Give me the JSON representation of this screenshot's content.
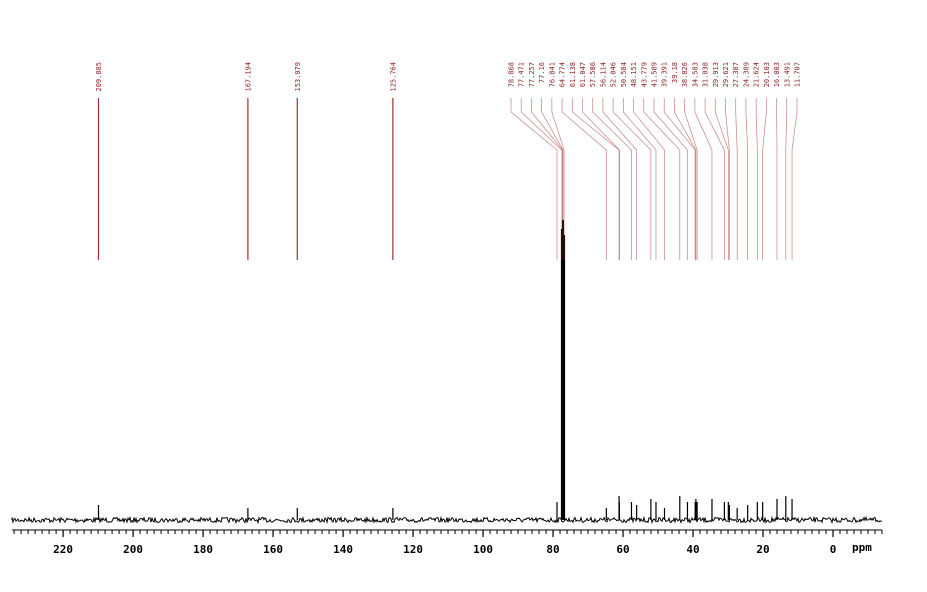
{
  "chart_data": {
    "type": "spectrum",
    "x_label": "ppm",
    "xlim": [
      234.6,
      -14
    ],
    "xticks": [
      220,
      200,
      180,
      160,
      140,
      120,
      100,
      80,
      60,
      40,
      20,
      0
    ],
    "color": "#000000",
    "label_color": "#a03030",
    "peaks": [
      209.885,
      167.194,
      153.079,
      125.764,
      78.868,
      77.471,
      77.257,
      77.16,
      76.841,
      64.774,
      61.138,
      61.047,
      57.586,
      56.114,
      52.046,
      50.584,
      48.151,
      43.779,
      41.589,
      39.391,
      39.18,
      38.826,
      34.583,
      31.038,
      29.913,
      29.621,
      27.387,
      24.389,
      21.624,
      20.103,
      16.003,
      13.491,
      11.707
    ],
    "intensities": [
      5,
      4,
      4,
      4,
      6,
      97,
      40,
      100,
      95,
      4,
      8,
      6,
      6,
      5,
      7,
      6,
      4,
      8,
      6,
      6,
      7,
      6,
      7,
      6,
      6,
      5,
      4,
      5,
      6,
      6,
      7,
      8,
      7
    ]
  }
}
